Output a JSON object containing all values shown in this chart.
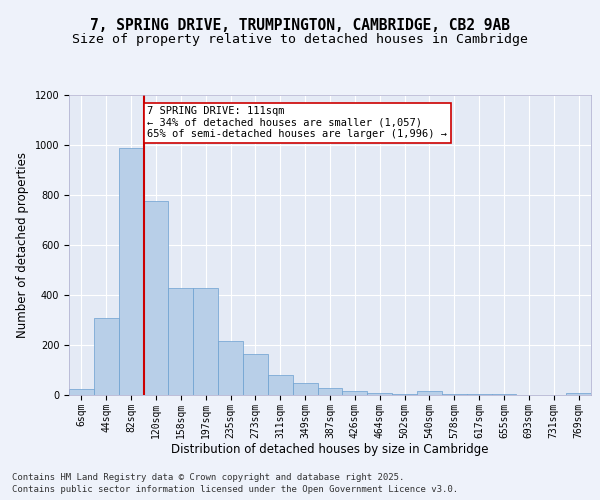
{
  "title": "7, SPRING DRIVE, TRUMPINGTON, CAMBRIDGE, CB2 9AB",
  "subtitle": "Size of property relative to detached houses in Cambridge",
  "xlabel": "Distribution of detached houses by size in Cambridge",
  "ylabel": "Number of detached properties",
  "categories": [
    "6sqm",
    "44sqm",
    "82sqm",
    "120sqm",
    "158sqm",
    "197sqm",
    "235sqm",
    "273sqm",
    "311sqm",
    "349sqm",
    "387sqm",
    "426sqm",
    "464sqm",
    "502sqm",
    "540sqm",
    "578sqm",
    "617sqm",
    "655sqm",
    "693sqm",
    "731sqm",
    "769sqm"
  ],
  "values": [
    25,
    310,
    990,
    775,
    430,
    430,
    215,
    165,
    80,
    50,
    30,
    15,
    10,
    5,
    15,
    5,
    5,
    5,
    0,
    0,
    10
  ],
  "bar_color": "#b8cfe8",
  "bar_edge_color": "#6a9fd0",
  "vline_position": 2.5,
  "vline_color": "#cc0000",
  "annotation_text": "7 SPRING DRIVE: 111sqm\n← 34% of detached houses are smaller (1,057)\n65% of semi-detached houses are larger (1,996) →",
  "annotation_box_color": "#cc0000",
  "annotation_fill": "#ffffff",
  "ylim": [
    0,
    1200
  ],
  "yticks": [
    0,
    200,
    400,
    600,
    800,
    1000,
    1200
  ],
  "background_color": "#eef2fa",
  "plot_bg_color": "#e4eaf5",
  "footer_line1": "Contains HM Land Registry data © Crown copyright and database right 2025.",
  "footer_line2": "Contains public sector information licensed under the Open Government Licence v3.0.",
  "title_fontsize": 10.5,
  "subtitle_fontsize": 9.5,
  "axis_label_fontsize": 8.5,
  "tick_fontsize": 7,
  "annotation_fontsize": 7.5,
  "footer_fontsize": 6.5
}
